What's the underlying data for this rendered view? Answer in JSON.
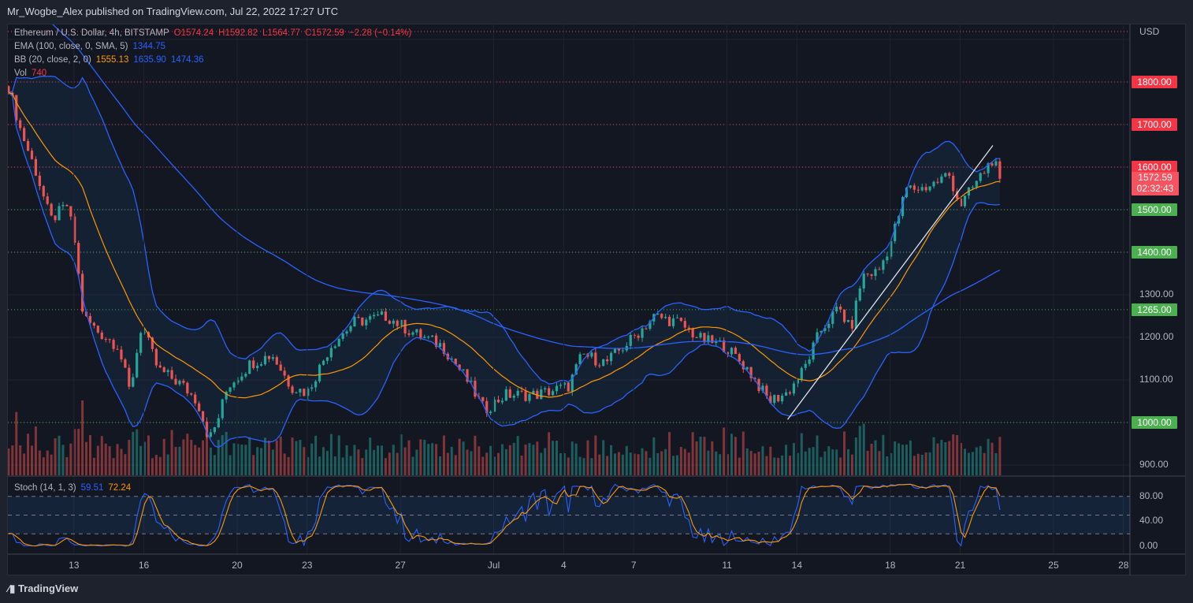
{
  "header": "Mr_Wogbe_Alex published on TradingView.com, Jul 22, 2022 17:27 UTC",
  "footer": "TradingView",
  "legend": {
    "symbol": "Ethereum / U.S. Dollar, 4h, BITSTAMP",
    "open": "O1574.24",
    "high": "H1592.82",
    "low": "L1564.77",
    "close": "C1572.59",
    "change": "−2.28 (−0.14%)",
    "ema_label": "EMA (100, close, 0, SMA, 5)",
    "ema_val": "1344.75",
    "bb_label": "BB (20, close, 2, 0)",
    "bb_mid": "1555.13",
    "bb_up": "1635.90",
    "bb_low": "1474.36",
    "vol_label": "Vol",
    "vol_val": "740",
    "stoch_label": "Stoch (14, 1, 3)",
    "stoch_k": "59.51",
    "stoch_d": "72.24"
  },
  "colors": {
    "up": "#26a69a",
    "down": "#ef5350",
    "red_level": "#f23645",
    "green_level": "#4caf50",
    "bb": "#2962ff",
    "basis": "#ff9800"
  },
  "chart_data": {
    "type": "candlestick",
    "title": "Ethereum / U.S. Dollar, 4h, BITSTAMP",
    "currency": "USD",
    "ylim": [
      860,
      1918
    ],
    "y_ticks": [
      "900.00",
      "1100.00",
      "1200.00",
      "1300.00"
    ],
    "x_ticks": [
      {
        "d": 13,
        "label": "13"
      },
      {
        "d": 16,
        "label": "16"
      },
      {
        "d": 20,
        "label": "20"
      },
      {
        "d": 23,
        "label": "23"
      },
      {
        "d": 27,
        "label": "27"
      },
      {
        "d": 31,
        "label": "Jul"
      },
      {
        "d": 34,
        "label": "4"
      },
      {
        "d": 37,
        "label": "7"
      },
      {
        "d": 41,
        "label": "11"
      },
      {
        "d": 44,
        "label": "14"
      },
      {
        "d": 48,
        "label": "18"
      },
      {
        "d": 51,
        "label": "21"
      },
      {
        "d": 55,
        "label": "25"
      },
      {
        "d": 58,
        "label": "28"
      }
    ],
    "levels": [
      {
        "price": 1800,
        "label": "1800.00",
        "kind": "resistance"
      },
      {
        "price": 1700,
        "label": "1700.00",
        "kind": "resistance"
      },
      {
        "price": 1600,
        "label": "1600.00",
        "kind": "resistance"
      },
      {
        "price": 1500,
        "label": "1500.00",
        "kind": "support"
      },
      {
        "price": 1400,
        "label": "1400.00",
        "kind": "support"
      },
      {
        "price": 1265,
        "label": "1265.00",
        "kind": "support"
      },
      {
        "price": 1000,
        "label": "1000.00",
        "kind": "support"
      }
    ],
    "last_price": "1572.59",
    "countdown": "02:32:43",
    "trendline": [
      [
        43.6,
        1007
      ],
      [
        52.4,
        1651
      ]
    ],
    "close_path": [
      [
        10.2,
        1790
      ],
      [
        10.7,
        1690
      ],
      [
        11.4,
        1585
      ],
      [
        12.0,
        1475
      ],
      [
        12.7,
        1510
      ],
      [
        13.0,
        1440
      ],
      [
        13.4,
        1250
      ],
      [
        14.0,
        1215
      ],
      [
        14.9,
        1180
      ],
      [
        15.4,
        1070
      ],
      [
        15.9,
        1230
      ],
      [
        16.6,
        1125
      ],
      [
        17.6,
        1090
      ],
      [
        18.3,
        1050
      ],
      [
        18.8,
        960
      ],
      [
        19.1,
        995
      ],
      [
        19.6,
        1085
      ],
      [
        20.6,
        1140
      ],
      [
        21.5,
        1160
      ],
      [
        22.3,
        1085
      ],
      [
        23.0,
        1070
      ],
      [
        24.0,
        1180
      ],
      [
        25.0,
        1235
      ],
      [
        26.4,
        1250
      ],
      [
        27.4,
        1215
      ],
      [
        28.8,
        1180
      ],
      [
        29.8,
        1105
      ],
      [
        30.6,
        1030
      ],
      [
        31.5,
        1065
      ],
      [
        32.8,
        1065
      ],
      [
        34.2,
        1085
      ],
      [
        34.8,
        1160
      ],
      [
        35.8,
        1140
      ],
      [
        36.9,
        1195
      ],
      [
        37.9,
        1250
      ],
      [
        38.9,
        1235
      ],
      [
        39.9,
        1195
      ],
      [
        40.9,
        1180
      ],
      [
        41.9,
        1125
      ],
      [
        42.8,
        1050
      ],
      [
        43.6,
        1070
      ],
      [
        44.3,
        1125
      ],
      [
        45.0,
        1215
      ],
      [
        45.8,
        1270
      ],
      [
        46.3,
        1215
      ],
      [
        46.8,
        1345
      ],
      [
        47.5,
        1355
      ],
      [
        48.0,
        1420
      ],
      [
        48.7,
        1550
      ],
      [
        49.4,
        1550
      ],
      [
        50.0,
        1565
      ],
      [
        50.5,
        1585
      ],
      [
        51.0,
        1510
      ],
      [
        51.7,
        1565
      ],
      [
        52.4,
        1620
      ],
      [
        52.7,
        1572.59
      ]
    ],
    "stoch": {
      "ylim": [
        0,
        100
      ],
      "ticks": [
        "80.00",
        "40.00",
        "0.00"
      ],
      "bands": [
        80,
        50,
        20
      ]
    }
  }
}
